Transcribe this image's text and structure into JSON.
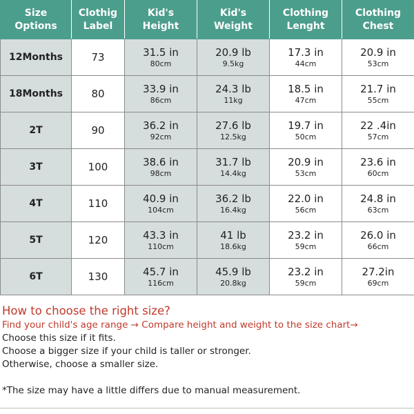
{
  "table": {
    "headers": [
      {
        "line1": "Size",
        "line2": "Options"
      },
      {
        "line1": "Clothig",
        "line2": "Label"
      },
      {
        "line1": "Kid's",
        "line2": "Height"
      },
      {
        "line1": "Kid's",
        "line2": "Weight"
      },
      {
        "line1": "Clothing",
        "line2": "Lenght"
      },
      {
        "line1": "Clothing",
        "line2": "Chest"
      }
    ],
    "rows": [
      {
        "size": "12Months",
        "label": "73",
        "height_in": "31.5 in",
        "height_cm": "80cm",
        "weight_lb": "20.9 lb",
        "weight_kg": "9.5kg",
        "length_in": "17.3 in",
        "length_cm": "44cm",
        "chest_in": "20.9 in",
        "chest_cm": "53cm"
      },
      {
        "size": "18Months",
        "label": "80",
        "height_in": "33.9 in",
        "height_cm": "86cm",
        "weight_lb": "24.3 lb",
        "weight_kg": "11kg",
        "length_in": "18.5 in",
        "length_cm": "47cm",
        "chest_in": "21.7 in",
        "chest_cm": "55cm"
      },
      {
        "size": "2T",
        "label": "90",
        "height_in": "36.2 in",
        "height_cm": "92cm",
        "weight_lb": "27.6 lb",
        "weight_kg": "12.5kg",
        "length_in": "19.7 in",
        "length_cm": "50cm",
        "chest_in": "22 .4in",
        "chest_cm": "57cm"
      },
      {
        "size": "3T",
        "label": "100",
        "height_in": "38.6 in",
        "height_cm": "98cm",
        "weight_lb": "31.7 lb",
        "weight_kg": "14.4kg",
        "length_in": "20.9 in",
        "length_cm": "53cm",
        "chest_in": "23.6 in",
        "chest_cm": "60cm"
      },
      {
        "size": "4T",
        "label": "110",
        "height_in": "40.9 in",
        "height_cm": "104cm",
        "weight_lb": "36.2 lb",
        "weight_kg": "16.4kg",
        "length_in": "22.0 in",
        "length_cm": "56cm",
        "chest_in": "24.8 in",
        "chest_cm": "63cm"
      },
      {
        "size": "5T",
        "label": "120",
        "height_in": "43.3 in",
        "height_cm": "110cm",
        "weight_lb": "41 lb",
        "weight_kg": "18.6kg",
        "length_in": "23.2 in",
        "length_cm": "59cm",
        "chest_in": "26.0 in",
        "chest_cm": "66cm"
      },
      {
        "size": "6T",
        "label": "130",
        "height_in": "45.7 in",
        "height_cm": "116cm",
        "weight_lb": "45.9 lb",
        "weight_kg": "20.8kg",
        "length_in": "23.2 in",
        "length_cm": "59cm",
        "chest_in": "27.2in",
        "chest_cm": "69cm"
      }
    ]
  },
  "guide": {
    "heading": "How to choose the right size?",
    "steps": "Find your child's age range → Compare height and weight to the size chart→",
    "lines": [
      "Choose this size if it fits.",
      "Choose a bigger size if your child is taller or stronger.",
      "Otherwise, choose a smaller size."
    ],
    "note": "*The size  may have a little differs due to manual measurement."
  },
  "colors": {
    "header_bg": "#4c9e8c",
    "shaded_cell": "#d6dddd",
    "accent_red": "#c0392b"
  }
}
